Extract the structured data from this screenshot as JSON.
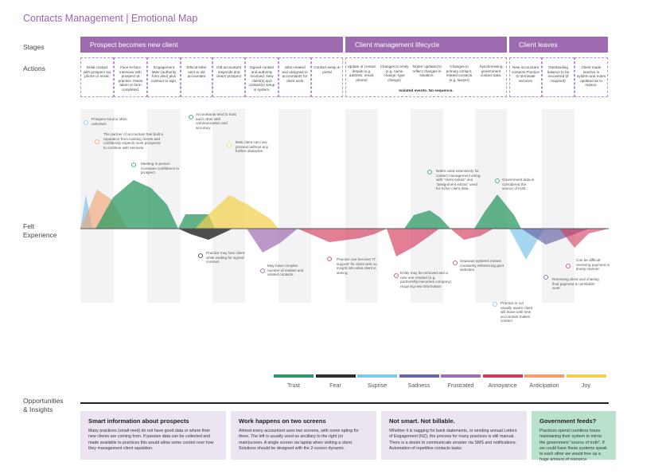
{
  "title": "Contacts Management | Emotional Map",
  "rows": {
    "stages": "Stages",
    "actions": "Actions",
    "felt": "Felt\nExperience",
    "opportunities": "Opportunities\n& Insights"
  },
  "stages": [
    {
      "label": "Prospect becomes new client"
    },
    {
      "label": "Client management lifecycle"
    },
    {
      "label": "Client leaves"
    }
  ],
  "actions": [
    "Initial contact with prospect via phone or email.",
    "Face-to-face interview with prospect at practice. Notes taken or form completed.",
    "Engagement letter (authority form also) plus contract to sign.",
    "Ethical letter sent to old accountant",
    "Old accountant responds and clears prospect",
    "Signed contact and authority received. New client(s) and contact(s) setup in system.",
    "Jobs created and assigned to accountants for client work",
    "Contact setup in portal",
    "Update of contact details (e.g. address, email, phone)",
    "Changes to entity (e.g. name change, type change)",
    "'Notes' updated to reflect changes in situation.",
    "Changes to primary contact, related contacts (e.g. lawyer)",
    "Synchronising government contact data.",
    "New accountant contacts Practice to terminate services",
    "Outstanding balance to be recovered (if required)",
    "Client made inactive in system and notes updated as to reason."
  ],
  "isolated_note": "Isolated events. No sequence.",
  "notes": [
    "Prospect source often unknown.",
    "The partner of accountant has built a reputation from existing clients and confidently expects most prospects to continue with services.",
    "Meeting in person increases confidence in prospect.",
    "Accountants tend to trust each other with communication and accuracy.",
    "New client can now proceed without any further obstacles.",
    "Practice may lose client while waiting for signed contract.",
    "May have complex number of entities and related contacts",
    "Practice can become 'IT support' for client with no insight into what client is seeing",
    "Entity may be removed and a new one created (e.g. partnership becomes company) requiring new information",
    "Notes used extensively for contact management along with \"client extras\" and \"assignment extras\" used for richer client data.",
    "Separate systems means constantly referencing govt websites.",
    "Government data is considered the source of truth.",
    "Practice is not usually aware client will leave until new accountant makes contact",
    "Removing client and chasing final payment is unreliable work.",
    "Can be difficult receiving payment in timely manner."
  ],
  "legend": [
    {
      "label": "Trust",
      "color": "#2e9a63"
    },
    {
      "label": "Fear",
      "color": "#2f2f2f"
    },
    {
      "label": "Suprise",
      "color": "#7fc8ea"
    },
    {
      "label": "Sadness",
      "color": "#6b68a8"
    },
    {
      "label": "Frustrated",
      "color": "#a06cb2"
    },
    {
      "label": "Annoyance",
      "color": "#d23b5c"
    },
    {
      "label": "Anticipation",
      "color": "#f0a06a"
    },
    {
      "label": "Joy",
      "color": "#f4cf4a"
    }
  ],
  "cards": [
    {
      "title": "Smart information about prospects",
      "body": "Many practices (small-med) do not have good data or where their new clients are coming from. If passive data can be collected and made available to practices this would allow some control over how they management client aquisition.",
      "bg": "#ede4f1"
    },
    {
      "title": "Work happens on two screens",
      "body": "Almost every accountant uses two screens, with some opting for three. The left is usually used as ancillary to the right (or main)screen. A single screen via laptop when visiting a client. Solutions should be designed with the 2-screen dynamic.",
      "bg": "#ede4f1"
    },
    {
      "title": "Not smart. Not billable.",
      "body": "Whether it is nagging for bank statements, or sending annual Letters of Engagement (NZ), the process for many practices is still manual. There is a desire to communicate smarter via SMS and notifications. Automation of repetitive contacts tasks.",
      "bg": "#ede4f1"
    },
    {
      "title": "Government feeds?",
      "body": "Practices spend countless hours maintaining their system to mirror the government \"source of truth\". If we could have these systems speak to each other we would free up a huge amount of resource.",
      "bg": "#b9e2cd"
    }
  ]
}
